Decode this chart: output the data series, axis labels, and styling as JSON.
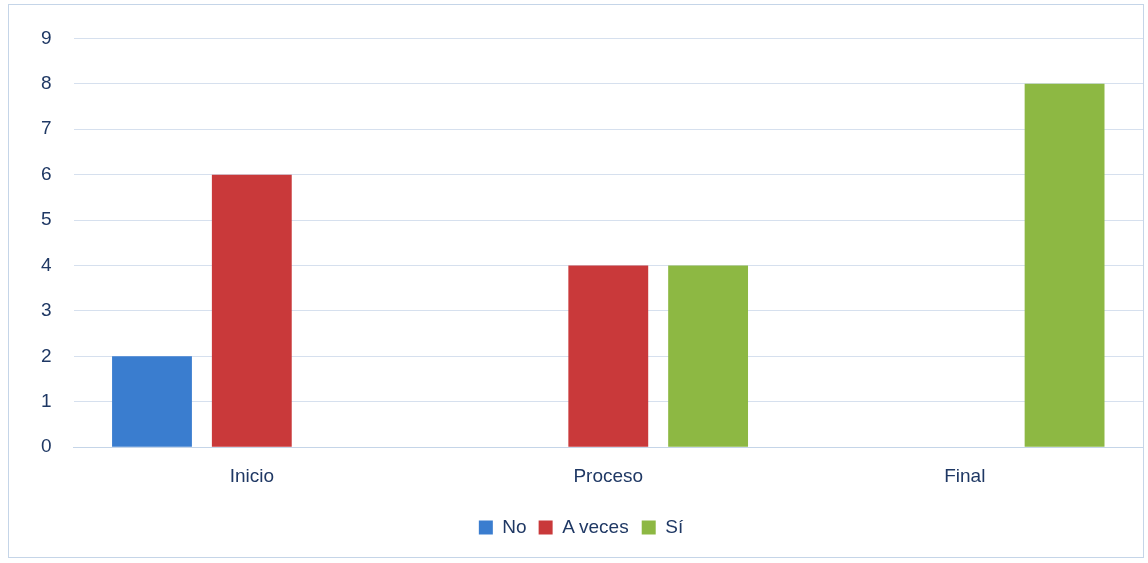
{
  "chart_data": {
    "type": "bar",
    "categories": [
      "Inicio",
      "Proceso",
      "Final"
    ],
    "series": [
      {
        "name": "No",
        "color": "#3a7dcf",
        "values": [
          2,
          0,
          0
        ]
      },
      {
        "name": "A veces",
        "color": "#c9393a",
        "values": [
          6,
          4,
          0
        ]
      },
      {
        "name": "Sí",
        "color": "#8db843",
        "values": [
          0,
          4,
          8
        ]
      }
    ],
    "ylim": [
      0,
      9
    ],
    "yticks": [
      0,
      1,
      2,
      3,
      4,
      5,
      6,
      7,
      8,
      9
    ],
    "grid": "y",
    "legend": "bottom"
  }
}
